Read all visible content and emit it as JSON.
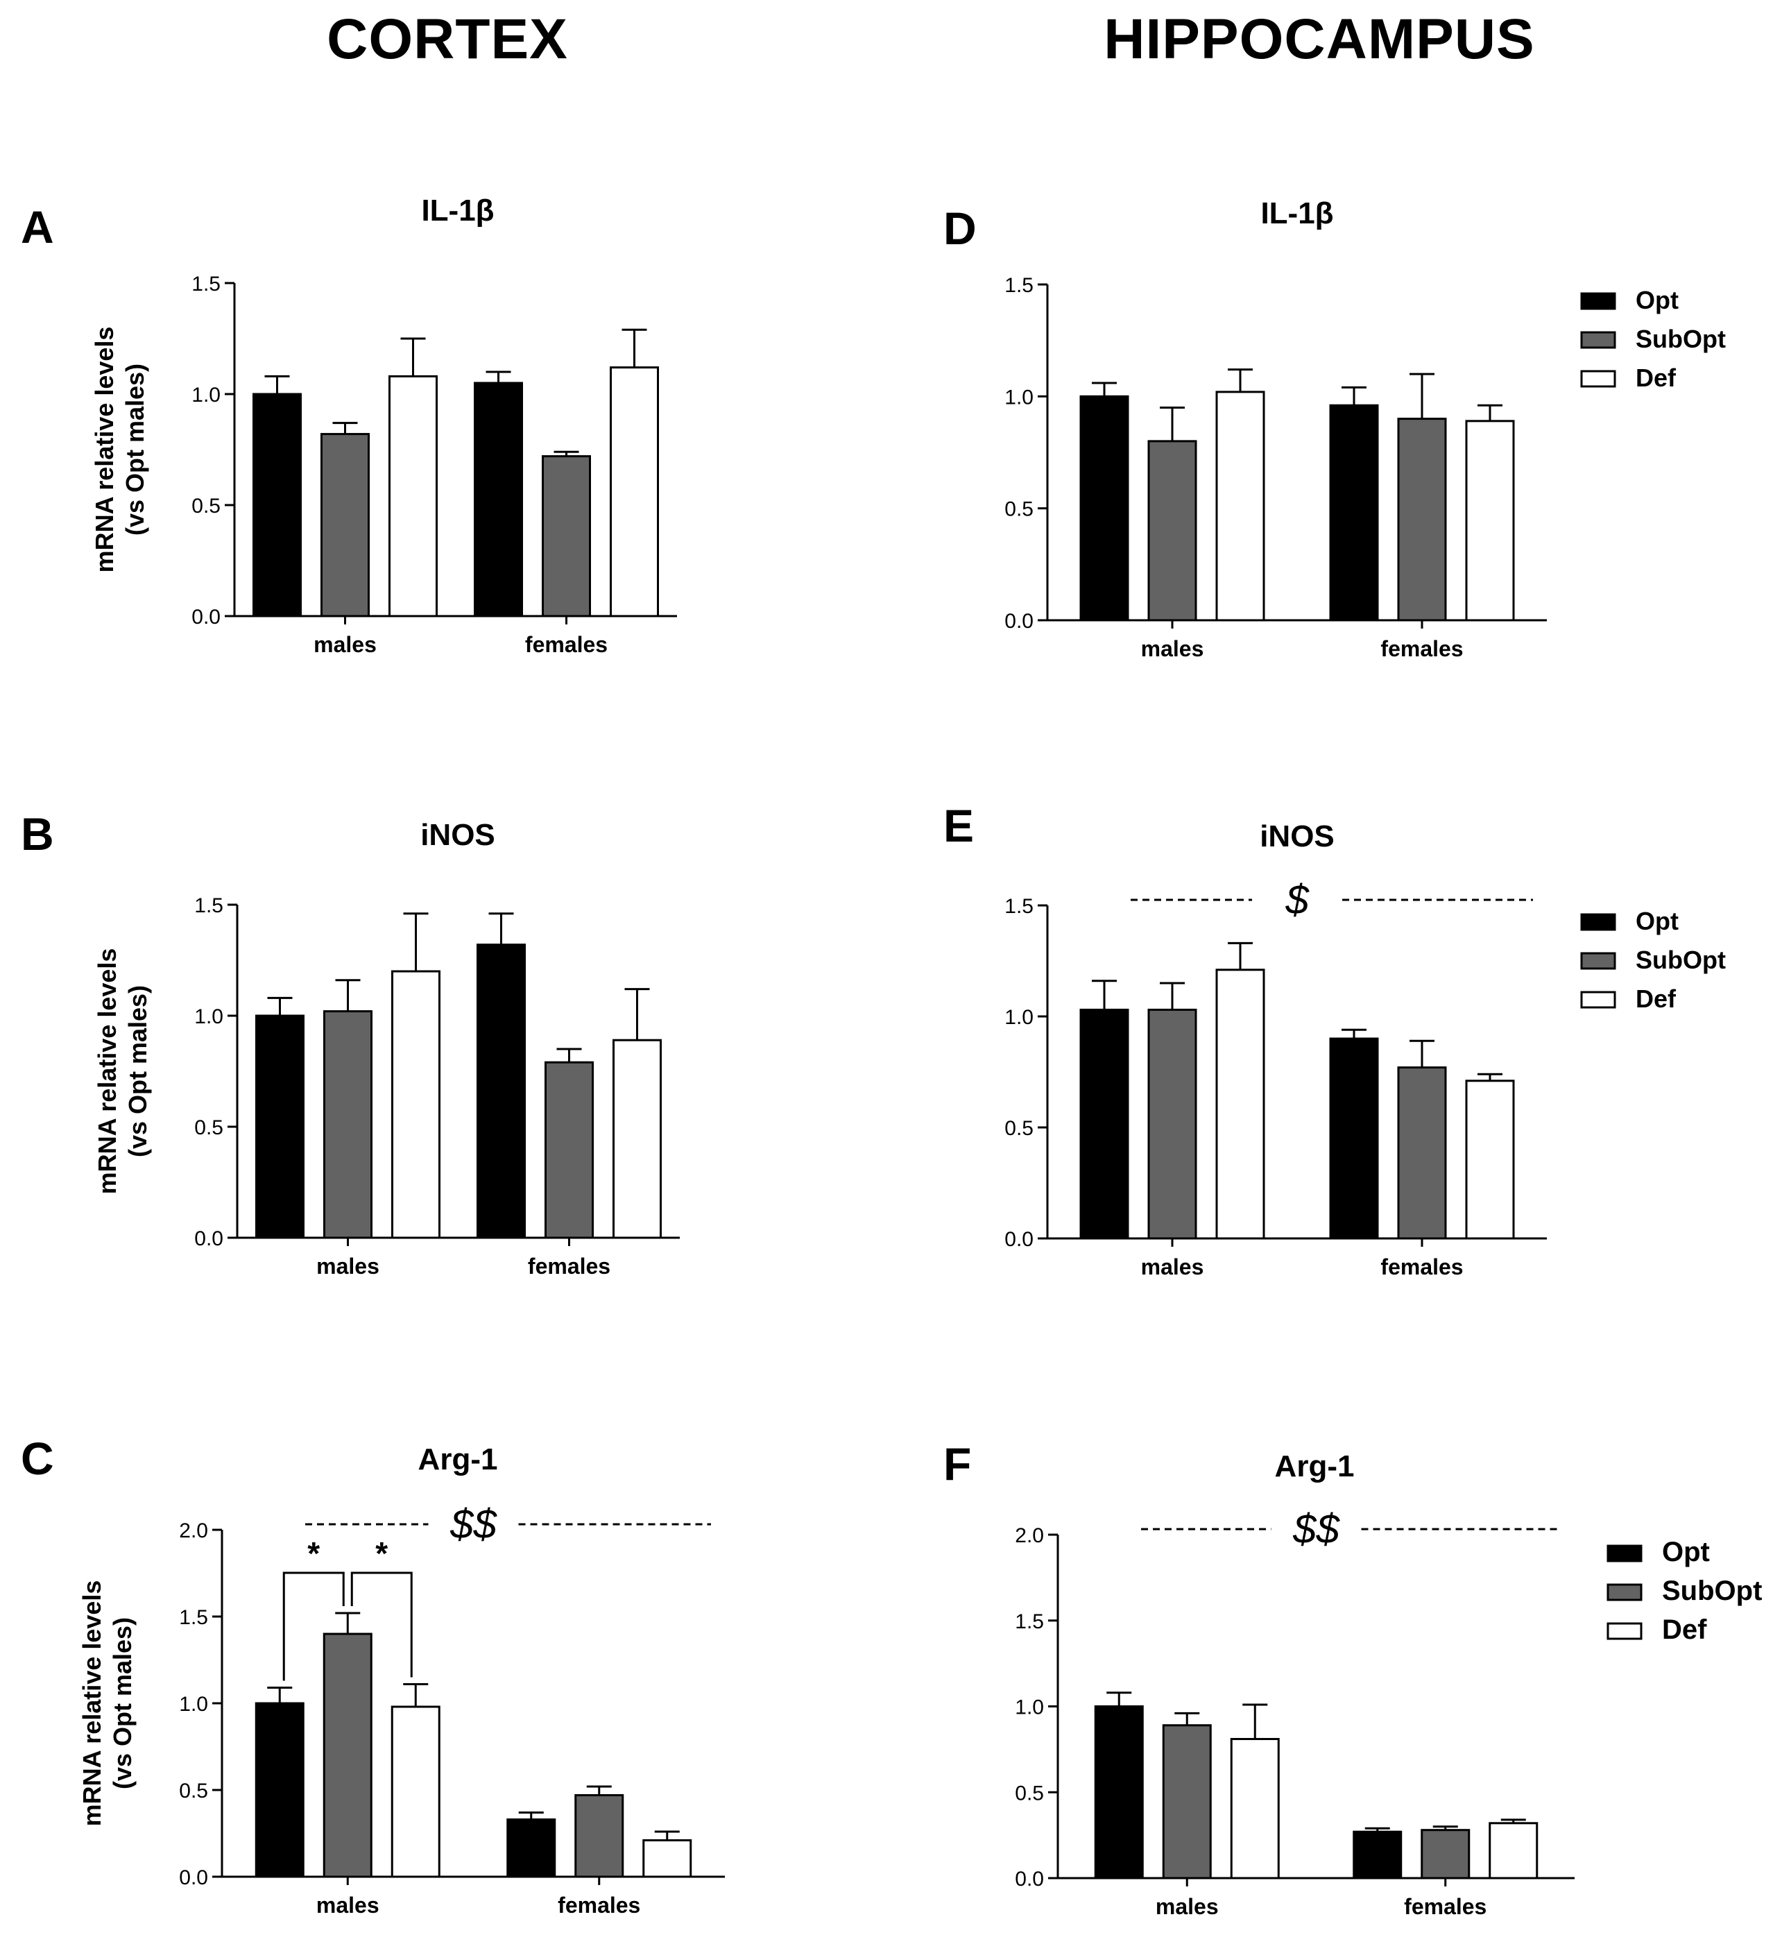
{
  "columns": {
    "left": "CORTEX",
    "right": "HIPPOCAMPUS"
  },
  "y_axis_label_line1": "mRNA relative levels",
  "y_axis_label_line2": "(vs Opt males)",
  "legend": [
    {
      "name": "Opt",
      "color": "#000000"
    },
    {
      "name": "SubOpt",
      "color": "#636363"
    },
    {
      "name": "Def",
      "color": "#ffffff"
    }
  ],
  "chart_data": [
    {
      "panel": "A",
      "region": "CORTEX",
      "type": "bar",
      "title": "IL-1β",
      "categories": [
        "males",
        "females"
      ],
      "ylim": [
        0,
        1.5
      ],
      "yticks": [
        "0.0",
        "0.5",
        "1.0",
        "1.5"
      ],
      "xlabel": "",
      "ylabel": "mRNA relative levels (vs Opt males)",
      "series": [
        {
          "name": "Opt",
          "values": [
            1.0,
            1.05
          ],
          "errors": [
            0.08,
            0.05
          ]
        },
        {
          "name": "SubOpt",
          "values": [
            0.82,
            0.72
          ],
          "errors": [
            0.05,
            0.02
          ]
        },
        {
          "name": "Def",
          "values": [
            1.08,
            1.12
          ],
          "errors": [
            0.17,
            0.17
          ]
        }
      ],
      "annotations": []
    },
    {
      "panel": "B",
      "region": "CORTEX",
      "type": "bar",
      "title": "iNOS",
      "categories": [
        "males",
        "females"
      ],
      "ylim": [
        0,
        1.5
      ],
      "yticks": [
        "0.0",
        "0.5",
        "1.0",
        "1.5"
      ],
      "xlabel": "",
      "ylabel": "mRNA relative levels (vs Opt males)",
      "series": [
        {
          "name": "Opt",
          "values": [
            1.0,
            1.32
          ],
          "errors": [
            0.08,
            0.14
          ]
        },
        {
          "name": "SubOpt",
          "values": [
            1.02,
            0.79
          ],
          "errors": [
            0.14,
            0.06
          ]
        },
        {
          "name": "Def",
          "values": [
            1.2,
            0.89
          ],
          "errors": [
            0.26,
            0.23
          ]
        }
      ],
      "annotations": []
    },
    {
      "panel": "C",
      "region": "CORTEX",
      "type": "bar",
      "title": "Arg-1",
      "categories": [
        "males",
        "females"
      ],
      "ylim": [
        0,
        2.0
      ],
      "yticks": [
        "0.0",
        "0.5",
        "1.0",
        "1.5",
        "2.0"
      ],
      "xlabel": "",
      "ylabel": "mRNA relative levels (vs Opt males)",
      "series": [
        {
          "name": "Opt",
          "values": [
            1.0,
            0.33
          ],
          "errors": [
            0.09,
            0.04
          ]
        },
        {
          "name": "SubOpt",
          "values": [
            1.4,
            0.47
          ],
          "errors": [
            0.12,
            0.05
          ]
        },
        {
          "name": "Def",
          "values": [
            0.98,
            0.21
          ],
          "errors": [
            0.13,
            0.05
          ]
        }
      ],
      "annotations": [
        {
          "kind": "sex-effect",
          "text": "$$"
        },
        {
          "kind": "pairwise",
          "text": "*",
          "between": [
            "males/Opt",
            "males/SubOpt"
          ]
        },
        {
          "kind": "pairwise",
          "text": "*",
          "between": [
            "males/SubOpt",
            "males/Def"
          ]
        }
      ]
    },
    {
      "panel": "D",
      "region": "HIPPOCAMPUS",
      "type": "bar",
      "title": "IL-1β",
      "categories": [
        "males",
        "females"
      ],
      "ylim": [
        0,
        1.5
      ],
      "yticks": [
        "0.0",
        "0.5",
        "1.0",
        "1.5"
      ],
      "xlabel": "",
      "ylabel": "",
      "series": [
        {
          "name": "Opt",
          "values": [
            1.0,
            0.96
          ],
          "errors": [
            0.06,
            0.08
          ]
        },
        {
          "name": "SubOpt",
          "values": [
            0.8,
            0.9
          ],
          "errors": [
            0.15,
            0.2
          ]
        },
        {
          "name": "Def",
          "values": [
            1.02,
            0.89
          ],
          "errors": [
            0.1,
            0.07
          ]
        }
      ],
      "annotations": []
    },
    {
      "panel": "E",
      "region": "HIPPOCAMPUS",
      "type": "bar",
      "title": "iNOS",
      "categories": [
        "males",
        "females"
      ],
      "ylim": [
        0,
        1.5
      ],
      "yticks": [
        "0.0",
        "0.5",
        "1.0",
        "1.5"
      ],
      "xlabel": "",
      "ylabel": "",
      "series": [
        {
          "name": "Opt",
          "values": [
            1.03,
            0.9
          ],
          "errors": [
            0.13,
            0.04
          ]
        },
        {
          "name": "SubOpt",
          "values": [
            1.03,
            0.77
          ],
          "errors": [
            0.12,
            0.12
          ]
        },
        {
          "name": "Def",
          "values": [
            1.21,
            0.71
          ],
          "errors": [
            0.12,
            0.03
          ]
        }
      ],
      "annotations": [
        {
          "kind": "sex-effect",
          "text": "$"
        }
      ]
    },
    {
      "panel": "F",
      "region": "HIPPOCAMPUS",
      "type": "bar",
      "title": "Arg-1",
      "categories": [
        "males",
        "females"
      ],
      "ylim": [
        0,
        2.0
      ],
      "yticks": [
        "0.0",
        "0.5",
        "1.0",
        "1.5",
        "2.0"
      ],
      "xlabel": "",
      "ylabel": "",
      "series": [
        {
          "name": "Opt",
          "values": [
            1.0,
            0.27
          ],
          "errors": [
            0.08,
            0.02
          ]
        },
        {
          "name": "SubOpt",
          "values": [
            0.89,
            0.28
          ],
          "errors": [
            0.07,
            0.02
          ]
        },
        {
          "name": "Def",
          "values": [
            0.81,
            0.32
          ],
          "errors": [
            0.2,
            0.02
          ]
        }
      ],
      "annotations": [
        {
          "kind": "sex-effect",
          "text": "$$"
        }
      ]
    }
  ]
}
